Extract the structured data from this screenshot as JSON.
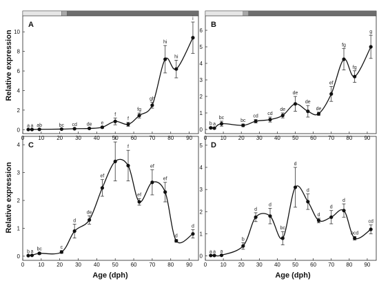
{
  "figure": {
    "xlabel": "Age (dph)",
    "ylabel": "Relative expression",
    "x_ticks": [
      0,
      10,
      20,
      30,
      40,
      50,
      60,
      70,
      80,
      90
    ]
  },
  "stage_bar": {
    "segments": [
      {
        "from": 0,
        "to": 21,
        "color": "#e6e6e6"
      },
      {
        "from": 21,
        "to": 24,
        "color": "#a8a8a8"
      },
      {
        "from": 24,
        "to": 95,
        "color": "#6e6e6e"
      }
    ]
  },
  "chart_data": [
    {
      "type": "line",
      "panel": "A",
      "xlim": [
        0,
        95
      ],
      "ylim": [
        -0.4,
        11
      ],
      "y_ticks": [
        0,
        2,
        4,
        6,
        8,
        10
      ],
      "x": [
        3,
        5,
        9,
        21,
        28,
        36,
        43,
        50,
        57,
        63,
        70,
        77,
        83,
        92
      ],
      "y": [
        0.02,
        0.02,
        0.04,
        0.06,
        0.1,
        0.13,
        0.25,
        0.85,
        0.55,
        1.45,
        2.5,
        7.2,
        6.2,
        9.4
      ],
      "error": [
        0.05,
        0.05,
        0.05,
        0.05,
        0.05,
        0.06,
        0.1,
        0.35,
        0.2,
        0.25,
        0.3,
        1.4,
        0.9,
        1.6
      ],
      "labels": [
        "a",
        "a",
        "ab",
        "bc",
        "cd",
        "de",
        "e",
        "f",
        "f",
        "fg",
        "gh",
        "hi",
        "hi",
        "i"
      ]
    },
    {
      "type": "line",
      "panel": "B",
      "xlim": [
        0,
        95
      ],
      "ylim": [
        -0.25,
        6.5
      ],
      "y_ticks": [
        0,
        1,
        2,
        3,
        4,
        5,
        6
      ],
      "x": [
        3,
        5,
        9,
        21,
        28,
        36,
        43,
        50,
        57,
        63,
        70,
        77,
        83,
        92
      ],
      "y": [
        0.1,
        0.08,
        0.35,
        0.25,
        0.5,
        0.6,
        0.85,
        1.55,
        1.1,
        0.95,
        2.15,
        4.25,
        3.2,
        5.0
      ],
      "error": [
        0.05,
        0.05,
        0.15,
        0.08,
        0.1,
        0.15,
        0.15,
        0.45,
        0.35,
        0.1,
        0.45,
        0.65,
        0.35,
        0.7
      ],
      "labels": [
        "b",
        "a",
        "bc",
        "bc",
        "cd",
        "cd",
        "de",
        "de",
        "de",
        "de",
        "ef",
        "fg",
        "fg",
        "g"
      ]
    },
    {
      "type": "line",
      "panel": "C",
      "xlim": [
        0,
        95
      ],
      "ylim": [
        -0.15,
        4.3
      ],
      "y_ticks": [
        0,
        1,
        2,
        3,
        4
      ],
      "x": [
        3,
        5,
        9,
        21,
        28,
        36,
        43,
        50,
        57,
        63,
        70,
        77,
        83,
        92
      ],
      "y": [
        0.02,
        0.03,
        0.1,
        0.15,
        0.9,
        1.3,
        2.45,
        3.4,
        3.25,
        1.95,
        2.65,
        2.3,
        0.55,
        0.8
      ],
      "error": [
        0.02,
        0.02,
        0.04,
        0.05,
        0.25,
        0.15,
        0.3,
        0.7,
        0.55,
        0.12,
        0.45,
        0.35,
        0.05,
        0.15
      ],
      "labels": [
        "b",
        "a",
        "bc",
        "c",
        "d",
        "de",
        "ef",
        "f",
        "f",
        "ef",
        "ef",
        "ef",
        "d",
        "d"
      ]
    },
    {
      "type": "line",
      "panel": "D",
      "xlim": [
        0,
        95
      ],
      "ylim": [
        -0.2,
        5.4
      ],
      "y_ticks": [
        0,
        1,
        2,
        3,
        4,
        5
      ],
      "x": [
        3,
        5,
        9,
        21,
        28,
        36,
        43,
        50,
        57,
        63,
        70,
        77,
        83,
        92
      ],
      "y": [
        0.02,
        0.02,
        0.03,
        0.45,
        1.75,
        1.8,
        0.8,
        3.1,
        2.45,
        1.6,
        1.75,
        2.05,
        0.8,
        1.2
      ],
      "error": [
        0.02,
        0.02,
        0.02,
        0.15,
        0.2,
        0.35,
        0.3,
        0.9,
        0.35,
        0.1,
        0.3,
        0.3,
        0.08,
        0.2
      ],
      "labels": [
        "a",
        "a",
        "a",
        "b",
        "d",
        "d",
        "bc",
        "d",
        "d",
        "d",
        "d",
        "d",
        "bcd",
        "cd"
      ]
    }
  ]
}
